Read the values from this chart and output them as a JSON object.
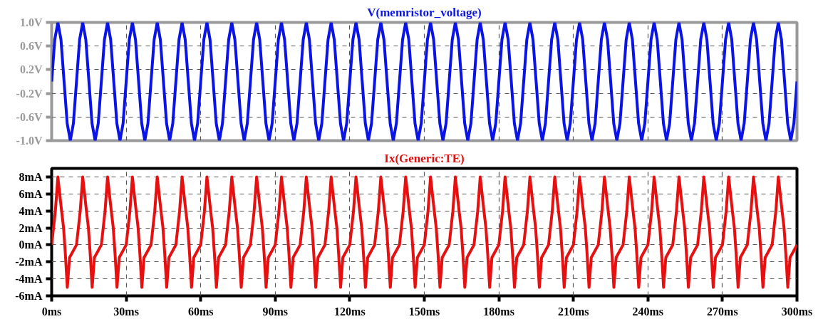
{
  "chart_data": [
    {
      "type": "line",
      "title": "V(memristor_voltage)",
      "xlim": [
        0,
        300
      ],
      "ylim": [
        -1,
        1
      ],
      "xticks": [
        {
          "value": 0,
          "label": null
        },
        {
          "value": 30,
          "label": null
        },
        {
          "value": 60,
          "label": null
        },
        {
          "value": 90,
          "label": null
        },
        {
          "value": 120,
          "label": null
        },
        {
          "value": 150,
          "label": null
        },
        {
          "value": 180,
          "label": null
        },
        {
          "value": 210,
          "label": null
        },
        {
          "value": 240,
          "label": null
        },
        {
          "value": 270,
          "label": null
        },
        {
          "value": 300,
          "label": null
        }
      ],
      "yticks": [
        {
          "value": -1,
          "label": "-1.0V"
        },
        {
          "value": -0.6,
          "label": "-0.6V"
        },
        {
          "value": -0.2,
          "label": "-0.2V"
        },
        {
          "value": 0.2,
          "label": "0.2V"
        },
        {
          "value": 0.6,
          "label": "0.6V"
        },
        {
          "value": 1,
          "label": "1.0V"
        }
      ],
      "tick_labels": "y",
      "grid": true,
      "series": [
        {
          "color": "#0a14e6",
          "x": [
            0,
            1.25,
            2.5,
            3.75,
            5,
            6.25,
            7.5,
            8.75,
            10,
            11.25,
            12.5,
            13.75,
            15,
            16.25,
            17.5,
            18.75,
            20,
            21.25,
            22.5,
            23.75,
            25,
            26.25,
            27.5,
            28.75,
            30,
            31.25,
            32.5,
            33.75,
            35,
            36.25,
            37.5,
            38.75,
            40,
            41.25,
            42.5,
            43.75,
            45,
            46.25,
            47.5,
            48.75,
            50,
            51.25,
            52.5,
            53.75,
            55,
            56.25,
            57.5,
            58.75,
            60,
            61.25,
            62.5,
            63.75,
            65,
            66.25,
            67.5,
            68.75,
            70,
            71.25,
            72.5,
            73.75,
            75,
            76.25,
            77.5,
            78.75,
            80,
            81.25,
            82.5,
            83.75,
            85,
            86.25,
            87.5,
            88.75,
            90,
            91.25,
            92.5,
            93.75,
            95,
            96.25,
            97.5,
            98.75,
            100,
            101.25,
            102.5,
            103.75,
            105,
            106.25,
            107.5,
            108.75,
            110,
            111.25,
            112.5,
            113.75,
            115,
            116.25,
            117.5,
            118.75,
            120,
            121.25,
            122.5,
            123.75,
            125,
            126.25,
            127.5,
            128.75,
            130,
            131.25,
            132.5,
            133.75,
            135,
            136.25,
            137.5,
            138.75,
            140,
            141.25,
            142.5,
            143.75,
            145,
            146.25,
            147.5,
            148.75,
            150,
            151.25,
            152.5,
            153.75,
            155,
            156.25,
            157.5,
            158.75,
            160,
            161.25,
            162.5,
            163.75,
            165,
            166.25,
            167.5,
            168.75,
            170,
            171.25,
            172.5,
            173.75,
            175,
            176.25,
            177.5,
            178.75,
            180,
            181.25,
            182.5,
            183.75,
            185,
            186.25,
            187.5,
            188.75,
            190,
            191.25,
            192.5,
            193.75,
            195,
            196.25,
            197.5,
            198.75,
            200,
            201.25,
            202.5,
            203.75,
            205,
            206.25,
            207.5,
            208.75,
            210,
            211.25,
            212.5,
            213.75,
            215,
            216.25,
            217.5,
            218.75,
            220,
            221.25,
            222.5,
            223.75,
            225,
            226.25,
            227.5,
            228.75,
            230,
            231.25,
            232.5,
            233.75,
            235,
            236.25,
            237.5,
            238.75,
            240,
            241.25,
            242.5,
            243.75,
            245,
            246.25,
            247.5,
            248.75,
            250,
            251.25,
            252.5,
            253.75,
            255,
            256.25,
            257.5,
            258.75,
            260,
            261.25,
            262.5,
            263.75,
            265,
            266.25,
            267.5,
            268.75,
            270,
            271.25,
            272.5,
            273.75,
            275,
            276.25,
            277.5,
            278.75,
            280,
            281.25,
            282.5,
            283.75,
            285,
            286.25,
            287.5,
            288.75,
            290,
            291.25,
            292.5,
            293.75,
            295,
            296.25,
            297.5,
            298.75,
            300
          ],
          "values": [
            0,
            0.71,
            1,
            0.71,
            0,
            -0.71,
            -1,
            -0.71,
            0,
            0.71,
            1,
            0.71,
            0,
            -0.71,
            -1,
            -0.71,
            0,
            0.71,
            1,
            0.71,
            0,
            -0.71,
            -1,
            -0.71,
            0,
            0.71,
            1,
            0.71,
            0,
            -0.71,
            -1,
            -0.71,
            0,
            0.71,
            1,
            0.71,
            0,
            -0.71,
            -1,
            -0.71,
            0,
            0.71,
            1,
            0.71,
            0,
            -0.71,
            -1,
            -0.71,
            0,
            0.71,
            1,
            0.71,
            0,
            -0.71,
            -1,
            -0.71,
            0,
            0.71,
            1,
            0.71,
            0,
            -0.71,
            -1,
            -0.71,
            0,
            0.71,
            1,
            0.71,
            0,
            -0.71,
            -1,
            -0.71,
            0,
            0.71,
            1,
            0.71,
            0,
            -0.71,
            -1,
            -0.71,
            0,
            0.71,
            1,
            0.71,
            0,
            -0.71,
            -1,
            -0.71,
            0,
            0.71,
            1,
            0.71,
            0,
            -0.71,
            -1,
            -0.71,
            0,
            0.71,
            1,
            0.71,
            0,
            -0.71,
            -1,
            -0.71,
            0,
            0.71,
            1,
            0.71,
            0,
            -0.71,
            -1,
            -0.71,
            0,
            0.71,
            1,
            0.71,
            0,
            -0.71,
            -1,
            -0.71,
            0,
            0.71,
            1,
            0.71,
            0,
            -0.71,
            -1,
            -0.71,
            0,
            0.71,
            1,
            0.71,
            0,
            -0.71,
            -1,
            -0.71,
            0,
            0.71,
            1,
            0.71,
            0,
            -0.71,
            -1,
            -0.71,
            0,
            0.71,
            1,
            0.71,
            0,
            -0.71,
            -1,
            -0.71,
            0,
            0.71,
            1,
            0.71,
            0,
            -0.71,
            -1,
            -0.71,
            0,
            0.71,
            1,
            0.71,
            0,
            -0.71,
            -1,
            -0.71,
            0,
            0.71,
            1,
            0.71,
            0,
            -0.71,
            -1,
            -0.71,
            0,
            0.71,
            1,
            0.71,
            0,
            -0.71,
            -1,
            -0.71,
            0,
            0.71,
            1,
            0.71,
            0,
            -0.71,
            -1,
            -0.71,
            0,
            0.71,
            1,
            0.71,
            0,
            -0.71,
            -1,
            -0.71,
            0,
            0.71,
            1,
            0.71,
            0,
            -0.71,
            -1,
            -0.71,
            0,
            0.71,
            1,
            0.71,
            0,
            -0.71,
            -1,
            -0.71,
            0,
            0.71,
            1,
            0.71,
            0,
            -0.71,
            -1,
            -0.71,
            0,
            0.71,
            1,
            0.71,
            0,
            -0.71,
            -1,
            -0.71,
            0,
            0.71,
            1,
            0.71,
            0,
            -0.71,
            -1,
            -0.71,
            0
          ]
        }
      ]
    },
    {
      "type": "line",
      "title": "Ix(Generic:TE)",
      "xlim": [
        0,
        300
      ],
      "ylim": [
        -6,
        9
      ],
      "xticks": [
        {
          "value": 0,
          "label": "0ms"
        },
        {
          "value": 30,
          "label": "30ms"
        },
        {
          "value": 60,
          "label": "60ms"
        },
        {
          "value": 90,
          "label": "90ms"
        },
        {
          "value": 120,
          "label": "120ms"
        },
        {
          "value": 150,
          "label": "150ms"
        },
        {
          "value": 180,
          "label": "180ms"
        },
        {
          "value": 210,
          "label": "210ms"
        },
        {
          "value": 240,
          "label": "240ms"
        },
        {
          "value": 270,
          "label": "270ms"
        },
        {
          "value": 300,
          "label": "300ms"
        }
      ],
      "yticks": [
        {
          "value": -6,
          "label": "-6mA"
        },
        {
          "value": -4,
          "label": "-4mA"
        },
        {
          "value": -2,
          "label": "-2mA"
        },
        {
          "value": 0,
          "label": "0mA"
        },
        {
          "value": 2,
          "label": "2mA"
        },
        {
          "value": 4,
          "label": "4mA"
        },
        {
          "value": 6,
          "label": "6mA"
        },
        {
          "value": 8,
          "label": "8mA"
        }
      ],
      "grid": true,
      "series": [
        {
          "color": "#e61010",
          "x": [
            0,
            1.5,
            2.5,
            4,
            4.8,
            5.5,
            6.3,
            7.2,
            10,
            11.5,
            12.5,
            14,
            14.8,
            15.5,
            16.3,
            17.2,
            20,
            21.5,
            22.5,
            24,
            24.8,
            25.5,
            26.3,
            27.2,
            30,
            31.5,
            32.5,
            34,
            34.8,
            35.5,
            36.3,
            37.2,
            40,
            41.5,
            42.5,
            44,
            44.8,
            45.5,
            46.3,
            47.2,
            50,
            51.5,
            52.5,
            54,
            54.8,
            55.5,
            56.3,
            57.2,
            60,
            61.5,
            62.5,
            64,
            64.8,
            65.5,
            66.3,
            67.2,
            70,
            71.5,
            72.5,
            74,
            74.8,
            75.5,
            76.3,
            77.2,
            80,
            81.5,
            82.5,
            84,
            84.8,
            85.5,
            86.3,
            87.2,
            90,
            91.5,
            92.5,
            94,
            94.8,
            95.5,
            96.3,
            97.2,
            100,
            101.5,
            102.5,
            104,
            104.8,
            105.5,
            106.3,
            107.2,
            110,
            111.5,
            112.5,
            114,
            114.8,
            115.5,
            116.3,
            117.2,
            120,
            121.5,
            122.5,
            124,
            124.8,
            125.5,
            126.3,
            127.2,
            130,
            131.5,
            132.5,
            134,
            134.8,
            135.5,
            136.3,
            137.2,
            140,
            141.5,
            142.5,
            144,
            144.8,
            145.5,
            146.3,
            147.2,
            150,
            151.5,
            152.5,
            154,
            154.8,
            155.5,
            156.3,
            157.2,
            160,
            161.5,
            162.5,
            164,
            164.8,
            165.5,
            166.3,
            167.2,
            170,
            171.5,
            172.5,
            174,
            174.8,
            175.5,
            176.3,
            177.2,
            180,
            181.5,
            182.5,
            184,
            184.8,
            185.5,
            186.3,
            187.2,
            190,
            191.5,
            192.5,
            194,
            194.8,
            195.5,
            196.3,
            197.2,
            200,
            201.5,
            202.5,
            204,
            204.8,
            205.5,
            206.3,
            207.2,
            210,
            211.5,
            212.5,
            214,
            214.8,
            215.5,
            216.3,
            217.2,
            220,
            221.5,
            222.5,
            224,
            224.8,
            225.5,
            226.3,
            227.2,
            230,
            231.5,
            232.5,
            234,
            234.8,
            235.5,
            236.3,
            237.2,
            240,
            241.5,
            242.5,
            244,
            244.8,
            245.5,
            246.3,
            247.2,
            250,
            251.5,
            252.5,
            254,
            254.8,
            255.5,
            256.3,
            257.2,
            260,
            261.5,
            262.5,
            264,
            264.8,
            265.5,
            266.3,
            267.2,
            270,
            271.5,
            272.5,
            274,
            274.8,
            275.5,
            276.3,
            277.2,
            280,
            281.5,
            282.5,
            284,
            284.8,
            285.5,
            286.3,
            287.2,
            290,
            291.5,
            292.5,
            294,
            294.8,
            295.5,
            296.3,
            297.2,
            300
          ],
          "values": [
            0,
            4,
            8,
            4,
            2,
            -1,
            -5,
            -1.5,
            0,
            4,
            8,
            4,
            2,
            -1,
            -5,
            -1.5,
            0,
            4,
            8,
            4,
            2,
            -1,
            -5,
            -1.5,
            0,
            4,
            8,
            4,
            2,
            -1,
            -5,
            -1.5,
            0,
            4,
            8,
            4,
            2,
            -1,
            -5,
            -1.5,
            0,
            4,
            8,
            4,
            2,
            -1,
            -5,
            -1.5,
            0,
            4,
            8,
            4,
            2,
            -1,
            -5,
            -1.5,
            0,
            4,
            8,
            4,
            2,
            -1,
            -5,
            -1.5,
            0,
            4,
            8,
            4,
            2,
            -1,
            -5,
            -1.5,
            0,
            4,
            8,
            4,
            2,
            -1,
            -5,
            -1.5,
            0,
            4,
            8,
            4,
            2,
            -1,
            -5,
            -1.5,
            0,
            4,
            8,
            4,
            2,
            -1,
            -5,
            -1.5,
            0,
            4,
            8,
            4,
            2,
            -1,
            -5,
            -1.5,
            0,
            4,
            8,
            4,
            2,
            -1,
            -5,
            -1.5,
            0,
            4,
            8,
            4,
            2,
            -1,
            -5,
            -1.5,
            0,
            4,
            8,
            4,
            2,
            -1,
            -5,
            -1.5,
            0,
            4,
            8,
            4,
            2,
            -1,
            -5,
            -1.5,
            0,
            4,
            8,
            4,
            2,
            -1,
            -5,
            -1.5,
            0,
            4,
            8,
            4,
            2,
            -1,
            -5,
            -1.5,
            0,
            4,
            8,
            4,
            2,
            -1,
            -5,
            -1.5,
            0,
            4,
            8,
            4,
            2,
            -1,
            -5,
            -1.5,
            0,
            4,
            8,
            4,
            2,
            -1,
            -5,
            -1.5,
            0,
            4,
            8,
            4,
            2,
            -1,
            -5,
            -1.5,
            0,
            4,
            8,
            4,
            2,
            -1,
            -5,
            -1.5,
            0,
            4,
            8,
            4,
            2,
            -1,
            -5,
            -1.5,
            0,
            4,
            8,
            4,
            2,
            -1,
            -5,
            -1.5,
            0,
            4,
            8,
            4,
            2,
            -1,
            -5,
            -1.5,
            0,
            4,
            8,
            4,
            2,
            -1,
            -5,
            -1.5,
            0,
            4,
            8,
            4,
            2,
            -1,
            -5,
            -1.5,
            0,
            4,
            8,
            4,
            2,
            -1,
            -5,
            -1.5,
            0
          ]
        }
      ]
    }
  ]
}
